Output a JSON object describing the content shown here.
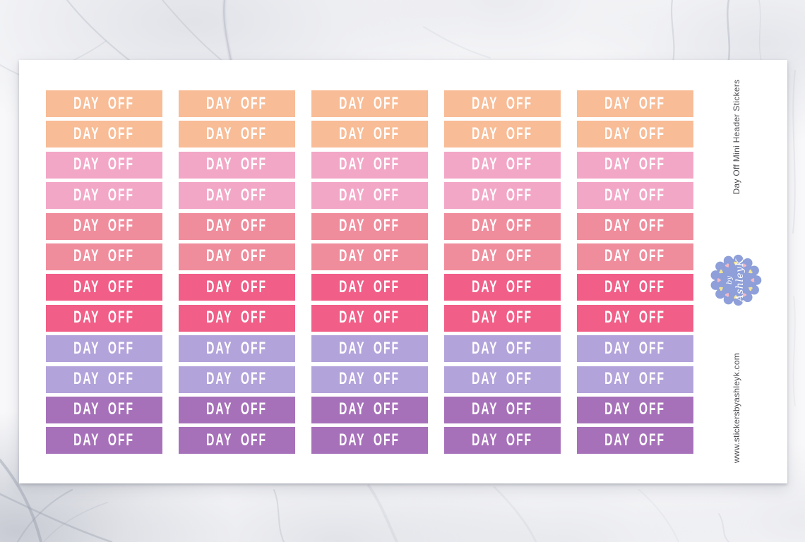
{
  "sheet": {
    "sticker_label": "DAY OFF",
    "columns": 5,
    "rows_per_color": 2,
    "colors": [
      {
        "name": "peach",
        "hex": "#F8BC96"
      },
      {
        "name": "pink",
        "hex": "#F3A7C7"
      },
      {
        "name": "salmon",
        "hex": "#F08D9D"
      },
      {
        "name": "hot-pink",
        "hex": "#F15E87"
      },
      {
        "name": "lavender",
        "hex": "#B3A3DB"
      },
      {
        "name": "purple",
        "hex": "#A771BA"
      }
    ],
    "text_color": "#FFFFFF"
  },
  "side": {
    "product_title": "Day Off Mini Header Stickers",
    "website": "www.stickersbyashleyk.com"
  },
  "badge": {
    "line1": "by",
    "line2": "AshleyK",
    "bg_color": "#8E9FD9",
    "heart_colors": [
      "#F2E394",
      "#F6B9C6"
    ],
    "heart_count": 12
  }
}
